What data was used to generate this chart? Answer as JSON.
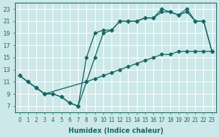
{
  "background_color": "#cce8e8",
  "grid_color": "#ffffff",
  "line_color": "#1a6666",
  "xlabel": "Humidex (Indice chaleur)",
  "xlim": [
    -0.5,
    23.5
  ],
  "ylim": [
    6,
    24
  ],
  "xticks": [
    0,
    1,
    2,
    3,
    4,
    5,
    6,
    7,
    8,
    9,
    10,
    11,
    12,
    13,
    14,
    15,
    16,
    17,
    18,
    19,
    20,
    21,
    22,
    23
  ],
  "yticks": [
    7,
    9,
    11,
    13,
    15,
    17,
    19,
    21,
    23
  ],
  "line_diagonal_x": [
    0,
    1,
    2,
    3,
    8,
    9,
    10,
    11,
    12,
    13,
    14,
    15,
    16,
    17,
    18,
    19,
    20,
    21,
    22,
    23
  ],
  "line_diagonal_y": [
    12,
    11,
    10,
    9,
    11,
    11.5,
    12,
    12.5,
    13,
    13.5,
    14,
    14.5,
    15,
    15.5,
    15.5,
    16,
    16,
    16,
    16,
    16
  ],
  "line_upper1_x": [
    0,
    1,
    2,
    3,
    4,
    5,
    6,
    7,
    8,
    9,
    10,
    11,
    12,
    13,
    14,
    15,
    16,
    17,
    18,
    19,
    20,
    21,
    22,
    23
  ],
  "line_upper1_y": [
    12,
    11,
    10,
    9,
    9,
    8.5,
    7.5,
    7,
    15,
    19,
    19.5,
    19.5,
    21,
    21,
    21,
    21.5,
    21.5,
    23,
    22.5,
    22,
    23,
    21,
    21,
    16
  ],
  "line_upper2_x": [
    0,
    1,
    2,
    3,
    4,
    5,
    6,
    7,
    8,
    9,
    10,
    11,
    12,
    13,
    14,
    15,
    16,
    17,
    18,
    19,
    20,
    21,
    22,
    23
  ],
  "line_upper2_y": [
    12,
    11,
    10,
    9,
    9,
    8.5,
    7.5,
    7,
    11,
    15,
    19,
    19.5,
    21,
    21,
    21,
    21.5,
    21.5,
    22.5,
    22.5,
    22,
    22.5,
    21,
    21,
    16
  ]
}
